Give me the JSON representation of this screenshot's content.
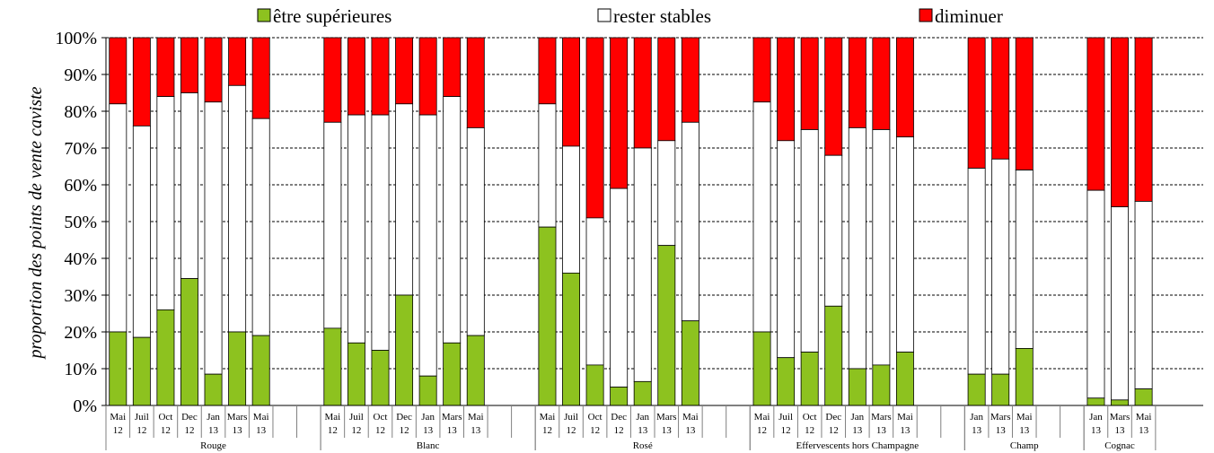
{
  "chart_data": {
    "type": "bar",
    "stacked": true,
    "title": "",
    "xlabel": "",
    "ylabel": "proportion des points de vente caviste",
    "ylim": [
      0,
      100
    ],
    "yticks": [
      "0%",
      "10%",
      "20%",
      "30%",
      "40%",
      "50%",
      "60%",
      "70%",
      "80%",
      "90%",
      "100%"
    ],
    "legend": {
      "position": "top",
      "entries": [
        {
          "name": "être supérieures",
          "color": "#8dc21f"
        },
        {
          "name": "rester stables",
          "color": "#ffffff"
        },
        {
          "name": "diminuer",
          "color": "#ff0000"
        }
      ]
    },
    "grid": true,
    "groups": [
      {
        "label": "Rouge",
        "categories": [
          [
            "Mai",
            "12"
          ],
          [
            "Juil",
            "12"
          ],
          [
            "Oct",
            "12"
          ],
          [
            "Dec",
            "12"
          ],
          [
            "Jan",
            "13"
          ],
          [
            "Mars",
            "13"
          ],
          [
            "Mai",
            "13"
          ]
        ],
        "green": [
          20,
          18.5,
          26,
          34.5,
          8.5,
          20,
          19
        ],
        "white_top": [
          82,
          76,
          84,
          85,
          82.5,
          87,
          78
        ]
      },
      {
        "label": "Blanc",
        "categories": [
          [
            "Mai",
            "12"
          ],
          [
            "Juil",
            "12"
          ],
          [
            "Oct",
            "12"
          ],
          [
            "Dec",
            "12"
          ],
          [
            "Jan",
            "13"
          ],
          [
            "Mars",
            "13"
          ],
          [
            "Mai",
            "13"
          ]
        ],
        "green": [
          21,
          17,
          15,
          30,
          8,
          17,
          19
        ],
        "white_top": [
          77,
          79,
          79,
          82,
          79,
          84,
          75.5
        ]
      },
      {
        "label": "Rosé",
        "categories": [
          [
            "Mai",
            "12"
          ],
          [
            "Juil",
            "12"
          ],
          [
            "Oct",
            "12"
          ],
          [
            "Dec",
            "12"
          ],
          [
            "Jan",
            "13"
          ],
          [
            "Mars",
            "13"
          ],
          [
            "Mai",
            "13"
          ]
        ],
        "green": [
          48.5,
          36,
          11,
          5,
          6.5,
          43.5,
          23
        ],
        "white_top": [
          82,
          70.5,
          51,
          59,
          70,
          72,
          77
        ]
      },
      {
        "label": "Effervescents hors Champagne",
        "categories": [
          [
            "Mai",
            "12"
          ],
          [
            "Juil",
            "12"
          ],
          [
            "Oct",
            "12"
          ],
          [
            "Dec",
            "12"
          ],
          [
            "Jan",
            "13"
          ],
          [
            "Mars",
            "13"
          ],
          [
            "Mai",
            "13"
          ]
        ],
        "green": [
          20,
          13,
          14.5,
          27,
          10,
          11,
          14.5
        ],
        "white_top": [
          82.5,
          72,
          75,
          68,
          75.5,
          75,
          73
        ]
      },
      {
        "label": "Champ",
        "categories": [
          [
            "Jan",
            "13"
          ],
          [
            "Mars",
            "13"
          ],
          [
            "Mai",
            "13"
          ]
        ],
        "green": [
          8.5,
          8.5,
          15.5
        ],
        "white_top": [
          64.5,
          67,
          64
        ]
      },
      {
        "label": "Cognac",
        "categories": [
          [
            "Jan",
            "13"
          ],
          [
            "Mars",
            "13"
          ],
          [
            "Mai",
            "13"
          ]
        ],
        "green": [
          2,
          1.5,
          4.5
        ],
        "white_top": [
          58.5,
          54,
          55.5
        ]
      }
    ]
  }
}
